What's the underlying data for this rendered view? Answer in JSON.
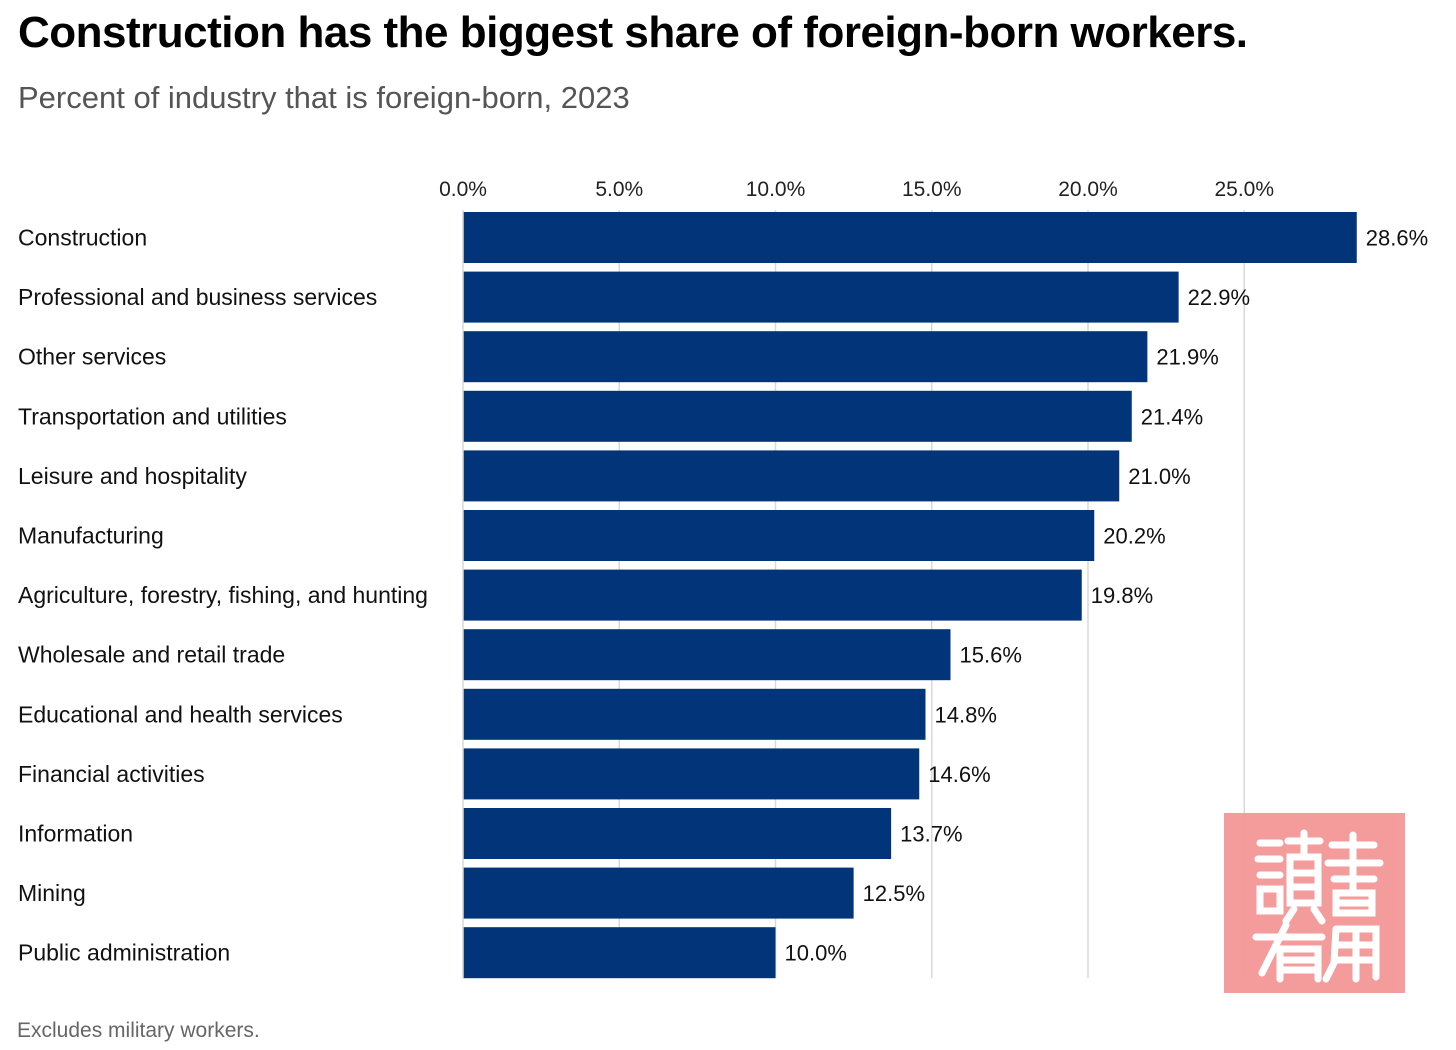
{
  "chart_data": {
    "type": "bar",
    "orientation": "horizontal",
    "title": "Construction has the biggest share of foreign-born workers.",
    "subtitle": "Percent of industry that is foreign-born, 2023",
    "footnote": "Excludes military workers.",
    "xlabel": "",
    "ylabel": "",
    "xlim": [
      0,
      28.6
    ],
    "x_ticks": [
      0,
      5,
      10,
      15,
      20,
      25
    ],
    "x_tick_labels": [
      "0.0%",
      "5.0%",
      "10.0%",
      "15.0%",
      "20.0%",
      "25.0%"
    ],
    "grid": true,
    "legend": "none",
    "bar_color": "#02347a",
    "gridline_color": "#d9d9d9",
    "categories": [
      "Construction",
      "Professional and business services",
      "Other services",
      "Transportation and utilities",
      "Leisure and hospitality",
      "Manufacturing",
      "Agriculture, forestry, fishing, and hunting",
      "Wholesale and retail trade",
      "Educational and health services",
      "Financial activities",
      "Information",
      "Mining",
      "Public administration"
    ],
    "values": [
      28.6,
      22.9,
      21.9,
      21.4,
      21.0,
      20.2,
      19.8,
      15.6,
      14.8,
      14.6,
      13.7,
      12.5,
      10.0
    ],
    "value_labels": [
      "28.6%",
      "22.9%",
      "21.9%",
      "21.4%",
      "21.0%",
      "20.2%",
      "19.8%",
      "15.6%",
      "14.8%",
      "14.6%",
      "13.7%",
      "12.5%",
      "10.0%"
    ]
  },
  "watermark": {
    "text": "讀書有用",
    "color": "#f49797"
  }
}
